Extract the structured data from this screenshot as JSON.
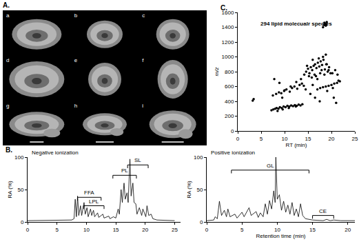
{
  "image_panel": {
    "panel": "A.",
    "labels": [
      "a",
      "b",
      "c",
      "d",
      "e",
      "f",
      "g",
      "h",
      "i"
    ]
  },
  "chart_data": [
    {
      "type": "line",
      "panel": "B.",
      "title": "Negative ionization",
      "ylabel": "RA (%)",
      "x": [
        0,
        7.5,
        7.9,
        8.1,
        8.3,
        8.5,
        8.7,
        9.0,
        9.2,
        9.6,
        9.8,
        10.1,
        10.3,
        10.7,
        10.9,
        11.2,
        11.4,
        11.9,
        12.1,
        12.8,
        13.0,
        13.8,
        14.0,
        14.6,
        15.0,
        15.4,
        15.6,
        15.9,
        16.1,
        16.4,
        16.6,
        16.9,
        17.1,
        17.4,
        17.6,
        17.9,
        18.1,
        18.4,
        18.6,
        19.0,
        19.4,
        19.6,
        20.1,
        20.3,
        20.6,
        21.0,
        21.3,
        22,
        25
      ],
      "values": [
        2,
        3,
        5,
        35,
        8,
        40,
        10,
        25,
        10,
        30,
        12,
        22,
        8,
        20,
        10,
        18,
        8,
        14,
        7,
        12,
        6,
        9,
        5,
        8,
        6,
        20,
        12,
        50,
        30,
        60,
        35,
        45,
        30,
        97,
        40,
        60,
        30,
        28,
        12,
        22,
        10,
        20,
        8,
        25,
        10,
        12,
        5,
        3,
        2
      ],
      "color": "#000000",
      "xlim": [
        0,
        26
      ],
      "xticks": [
        0,
        5,
        10,
        15,
        20,
        25
      ],
      "ylim": [
        0,
        100
      ],
      "yticks": [
        0,
        50,
        100
      ],
      "grid": false,
      "annotations": [
        {
          "text": "FFA",
          "x0": 8.5,
          "x1": 12.5,
          "y": 38
        },
        {
          "text": "LPL",
          "x0": 9.5,
          "x1": 13.0,
          "y": 25
        },
        {
          "text": "PL",
          "x0": 14.5,
          "x1": 18.5,
          "y": 72
        },
        {
          "text": "SL",
          "x0": 17.0,
          "x1": 20.5,
          "y": 88
        }
      ]
    },
    {
      "type": "line",
      "title": "Positive ionization",
      "xlabel": "Retention time (min)",
      "ylabel": "RA (%)",
      "x": [
        0,
        1.0,
        1.2,
        1.5,
        1.8,
        2.1,
        2.5,
        2.8,
        3.0,
        3.3,
        4.0,
        4.3,
        5.0,
        5.3,
        6.0,
        6.3,
        7.0,
        7.3,
        7.6,
        8.0,
        8.3,
        8.6,
        8.9,
        9.2,
        9.5,
        9.7,
        9.8,
        10.0,
        10.3,
        10.6,
        10.9,
        11.2,
        11.5,
        11.8,
        12.1,
        12.4,
        12.7,
        13.0,
        13.3,
        13.6,
        14.0,
        15,
        16.5,
        17,
        17.5,
        18,
        19,
        21
      ],
      "values": [
        2,
        3,
        8,
        5,
        32,
        10,
        18,
        8,
        20,
        8,
        12,
        6,
        15,
        8,
        22,
        10,
        16,
        7,
        14,
        8,
        28,
        12,
        33,
        20,
        48,
        30,
        100,
        35,
        42,
        18,
        32,
        15,
        26,
        12,
        30,
        10,
        20,
        8,
        28,
        10,
        5,
        3,
        2,
        4,
        2,
        3,
        2,
        2
      ],
      "color": "#000000",
      "xlim": [
        0,
        21
      ],
      "xticks": [
        0,
        5,
        10,
        15,
        20
      ],
      "ylim": [
        0,
        100
      ],
      "yticks": [
        0,
        50,
        100
      ],
      "grid": false,
      "annotations": [
        {
          "text": "GL",
          "x0": 3.5,
          "x1": 14.5,
          "y": 80
        },
        {
          "text": "CE",
          "x0": 15.0,
          "x1": 18.0,
          "y": 10
        }
      ]
    },
    {
      "type": "scatter",
      "panel": "C.",
      "xlabel": "RT (min)",
      "ylabel": "m/z",
      "x": [
        3.2,
        3.4,
        7.2,
        7.6,
        8.0,
        8.3,
        8.7,
        9.0,
        9.4,
        9.8,
        10.2,
        10.6,
        11.0,
        11.4,
        11.8,
        12.2,
        12.6,
        13.0,
        13.4,
        13.8,
        8.5,
        9.6,
        10.9,
        12.4,
        7.5,
        8.2,
        8.8,
        9.3,
        9.9,
        10.4,
        11.1,
        11.6,
        12.1,
        12.7,
        13.2,
        13.7,
        14.1,
        8.9,
        10.0,
        11.3,
        12.5,
        13.5,
        7.8,
        9.5,
        14.2,
        14.6,
        15.0,
        15.3,
        15.6,
        15.9,
        16.2,
        16.5,
        16.8,
        17.1,
        17.4,
        17.7,
        18.0,
        18.3,
        18.6,
        18.9,
        19.2,
        19.5,
        19.8,
        15.2,
        15.8,
        16.4,
        17.0,
        17.6,
        18.2,
        18.8,
        19.4,
        16.0,
        17.3,
        18.5,
        14.8,
        16.7,
        17.9,
        19.0,
        20.2,
        20.8,
        21.3,
        18.2,
        18.4,
        18.6,
        18.8,
        19.0,
        18.5,
        18.9,
        17.0,
        17.6,
        18.2,
        18.8,
        19.4,
        20.0,
        20.6,
        21.2,
        21.8,
        19.1,
        20.3,
        21.5,
        15.5,
        16.5,
        17.5,
        14.5,
        16.0,
        20.5,
        21.0
      ],
      "values": [
        410,
        430,
        280,
        290,
        300,
        310,
        300,
        320,
        310,
        330,
        320,
        340,
        330,
        345,
        335,
        350,
        340,
        355,
        345,
        360,
        270,
        290,
        310,
        330,
        480,
        500,
        520,
        510,
        540,
        560,
        530,
        580,
        600,
        570,
        620,
        640,
        610,
        650,
        550,
        600,
        660,
        700,
        700,
        450,
        760,
        800,
        840,
        780,
        860,
        820,
        880,
        900,
        850,
        920,
        870,
        940,
        890,
        960,
        830,
        900,
        800,
        860,
        780,
        740,
        720,
        760,
        700,
        780,
        1000,
        1030,
        820,
        960,
        980,
        760,
        880,
        740,
        820,
        900,
        780,
        820,
        760,
        1400,
        1430,
        1450,
        1420,
        1470,
        1460,
        1440,
        560,
        580,
        590,
        600,
        610,
        620,
        640,
        650,
        670,
        540,
        580,
        680,
        500,
        450,
        400,
        560,
        620,
        450,
        380
      ],
      "color": "#000000",
      "marker": "circle",
      "xlim": [
        0,
        25
      ],
      "xticks": [
        0,
        5,
        10,
        15,
        20,
        25
      ],
      "ylim": [
        0,
        1600
      ],
      "yticks": [
        0,
        200,
        400,
        600,
        800,
        1000,
        1200,
        1400,
        1600
      ],
      "grid": false,
      "annotations": [
        {
          "text": "294 lipid molecualr species",
          "x": 4.5,
          "y": 1450
        }
      ]
    }
  ]
}
